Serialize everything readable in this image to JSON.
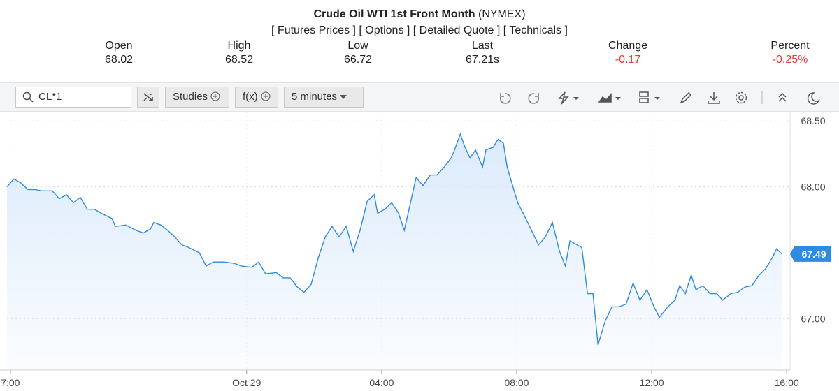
{
  "header": {
    "title": "Crude Oil WTI 1st Front Month",
    "exchange": "(NYMEX)",
    "links": [
      "[ Futures Prices ]",
      "[ Options ]",
      "[ Detailed Quote ]",
      "[ Technicals ]"
    ]
  },
  "quote": [
    {
      "label": "Open",
      "value": "68.02"
    },
    {
      "label": "High",
      "value": "68.52"
    },
    {
      "label": "Low",
      "value": "66.72"
    },
    {
      "label": "Last",
      "value": "67.21s"
    },
    {
      "label": "Change",
      "value": "-0.17",
      "color": "#e53935"
    },
    {
      "label": "Percent",
      "value": "-0.25%",
      "color": "#e53935"
    }
  ],
  "toolbar": {
    "symbol": "CL*1",
    "buttons": [
      "Studies",
      "f(x)"
    ],
    "interval": "5 minutes"
  },
  "chart_data": {
    "type": "area",
    "color": "#2f8ae0",
    "fill": "#d7e8fb",
    "x": [
      16.9,
      17.1,
      17.31,
      17.52,
      17.73,
      17.93,
      18.24,
      18.45,
      18.66,
      18.87,
      19.07,
      19.28,
      19.49,
      19.69,
      20.01,
      20.11,
      20.42,
      20.73,
      20.94,
      21.15,
      21.25,
      21.46,
      21.66,
      21.87,
      22.08,
      22.28,
      22.6,
      22.8,
      23.01,
      23.32,
      23.63,
      23.84,
      24.15,
      24.36,
      24.56,
      24.88,
      25.08,
      25.29,
      25.5,
      25.7,
      25.91,
      26.12,
      26.33,
      26.53,
      26.74,
      26.95,
      27.16,
      27.36,
      27.57,
      27.78,
      27.88,
      28.09,
      28.3,
      28.5,
      28.67,
      28.81,
      29.02,
      29.23,
      29.44,
      29.64,
      29.85,
      30.06,
      30.16,
      30.33,
      30.47,
      30.62,
      30.78,
      30.99,
      31.09,
      31.3,
      31.45,
      31.61,
      31.72,
      32.03,
      32.23,
      32.44,
      32.65,
      32.85,
      33.06,
      33.27,
      33.44,
      33.58,
      33.79,
      33.93,
      34.1,
      34.26,
      34.41,
      34.62,
      34.82,
      35.03,
      35.24,
      35.45,
      35.65,
      35.86,
      36.07,
      36.23,
      36.48,
      36.69,
      36.83,
      37.0,
      37.17,
      37.31,
      37.52,
      37.73,
      37.93,
      38.1,
      38.35,
      38.55,
      38.76,
      38.97,
      39.18,
      39.38,
      39.59,
      39.7,
      39.86
    ],
    "values": [
      68.0,
      68.06,
      68.03,
      67.98,
      67.98,
      67.97,
      67.97,
      67.91,
      67.94,
      67.88,
      67.92,
      67.83,
      67.83,
      67.8,
      67.76,
      67.7,
      67.71,
      67.67,
      67.65,
      67.68,
      67.73,
      67.71,
      67.67,
      67.62,
      67.56,
      67.54,
      67.5,
      67.4,
      67.43,
      67.43,
      67.42,
      67.4,
      67.39,
      67.43,
      67.34,
      67.35,
      67.31,
      67.31,
      67.24,
      67.2,
      67.26,
      67.46,
      67.62,
      67.7,
      67.62,
      67.7,
      67.51,
      67.67,
      67.89,
      67.94,
      67.8,
      67.83,
      67.88,
      67.8,
      67.67,
      67.83,
      68.07,
      68.01,
      68.09,
      68.09,
      68.15,
      68.22,
      68.28,
      68.4,
      68.3,
      68.22,
      68.28,
      68.15,
      68.28,
      68.3,
      68.36,
      68.33,
      68.15,
      67.88,
      67.78,
      67.67,
      67.56,
      67.62,
      67.73,
      67.51,
      67.4,
      67.59,
      67.56,
      67.54,
      67.19,
      67.19,
      66.8,
      66.98,
      67.09,
      67.09,
      67.11,
      67.27,
      67.14,
      67.22,
      67.09,
      67.01,
      67.09,
      67.14,
      67.25,
      67.19,
      67.33,
      67.22,
      67.25,
      67.19,
      67.19,
      67.14,
      67.19,
      67.2,
      67.24,
      67.25,
      67.33,
      67.38,
      67.47,
      67.53,
      67.49
    ],
    "xlim": [
      16.9,
      40.1
    ],
    "ylim": [
      66.61,
      68.57
    ],
    "xticks": [
      {
        "value": 17,
        "label": "7:00"
      },
      {
        "value": 24,
        "label": "Oct 29"
      },
      {
        "value": 28,
        "label": "04:00"
      },
      {
        "value": 32,
        "label": "08:00"
      },
      {
        "value": 36,
        "label": "12:00"
      },
      {
        "value": 40,
        "label": "16:00"
      }
    ],
    "yticks": [
      {
        "value": 67,
        "label": "67.00"
      },
      {
        "value": 68,
        "label": "68.00"
      },
      {
        "value": 68.5,
        "label": "68.50"
      }
    ],
    "grid": true,
    "last_price": 67.49
  }
}
